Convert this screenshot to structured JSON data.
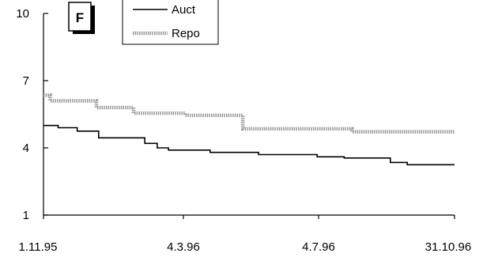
{
  "chart_data": {
    "type": "line",
    "panel_label": "F",
    "ylim": [
      1,
      10
    ],
    "y_ticks": [
      1,
      4,
      7,
      10
    ],
    "x_ticks": [
      "1.11.95",
      "4.3.96",
      "4.7.96",
      "31.10.96"
    ],
    "x_range": [
      "1995-11-01",
      "1996-10-31"
    ],
    "grid": false,
    "legend_position": "top-center",
    "series": [
      {
        "name": "Auct",
        "style": "solid",
        "color": "#000000",
        "points": [
          [
            "1995-11-01",
            5.0
          ],
          [
            "1995-11-14",
            4.9
          ],
          [
            "1995-12-01",
            4.75
          ],
          [
            "1995-12-20",
            4.45
          ],
          [
            "1996-01-30",
            4.2
          ],
          [
            "1996-02-10",
            4.0
          ],
          [
            "1996-02-20",
            3.9
          ],
          [
            "1996-03-28",
            3.8
          ],
          [
            "1996-05-10",
            3.7
          ],
          [
            "1996-07-01",
            3.6
          ],
          [
            "1996-07-25",
            3.55
          ],
          [
            "1996-09-04",
            3.35
          ],
          [
            "1996-09-19",
            3.25
          ],
          [
            "1996-10-31",
            3.25
          ]
        ]
      },
      {
        "name": "Repo",
        "style": "dotted",
        "color": "#9a9a9a",
        "points": [
          [
            "1995-11-01",
            6.35
          ],
          [
            "1995-11-07",
            6.1
          ],
          [
            "1995-12-18",
            5.8
          ],
          [
            "1996-01-20",
            5.55
          ],
          [
            "1996-03-06",
            5.45
          ],
          [
            "1996-04-26",
            4.85
          ],
          [
            "1996-08-01",
            4.72
          ],
          [
            "1996-10-31",
            4.72
          ]
        ]
      }
    ]
  }
}
